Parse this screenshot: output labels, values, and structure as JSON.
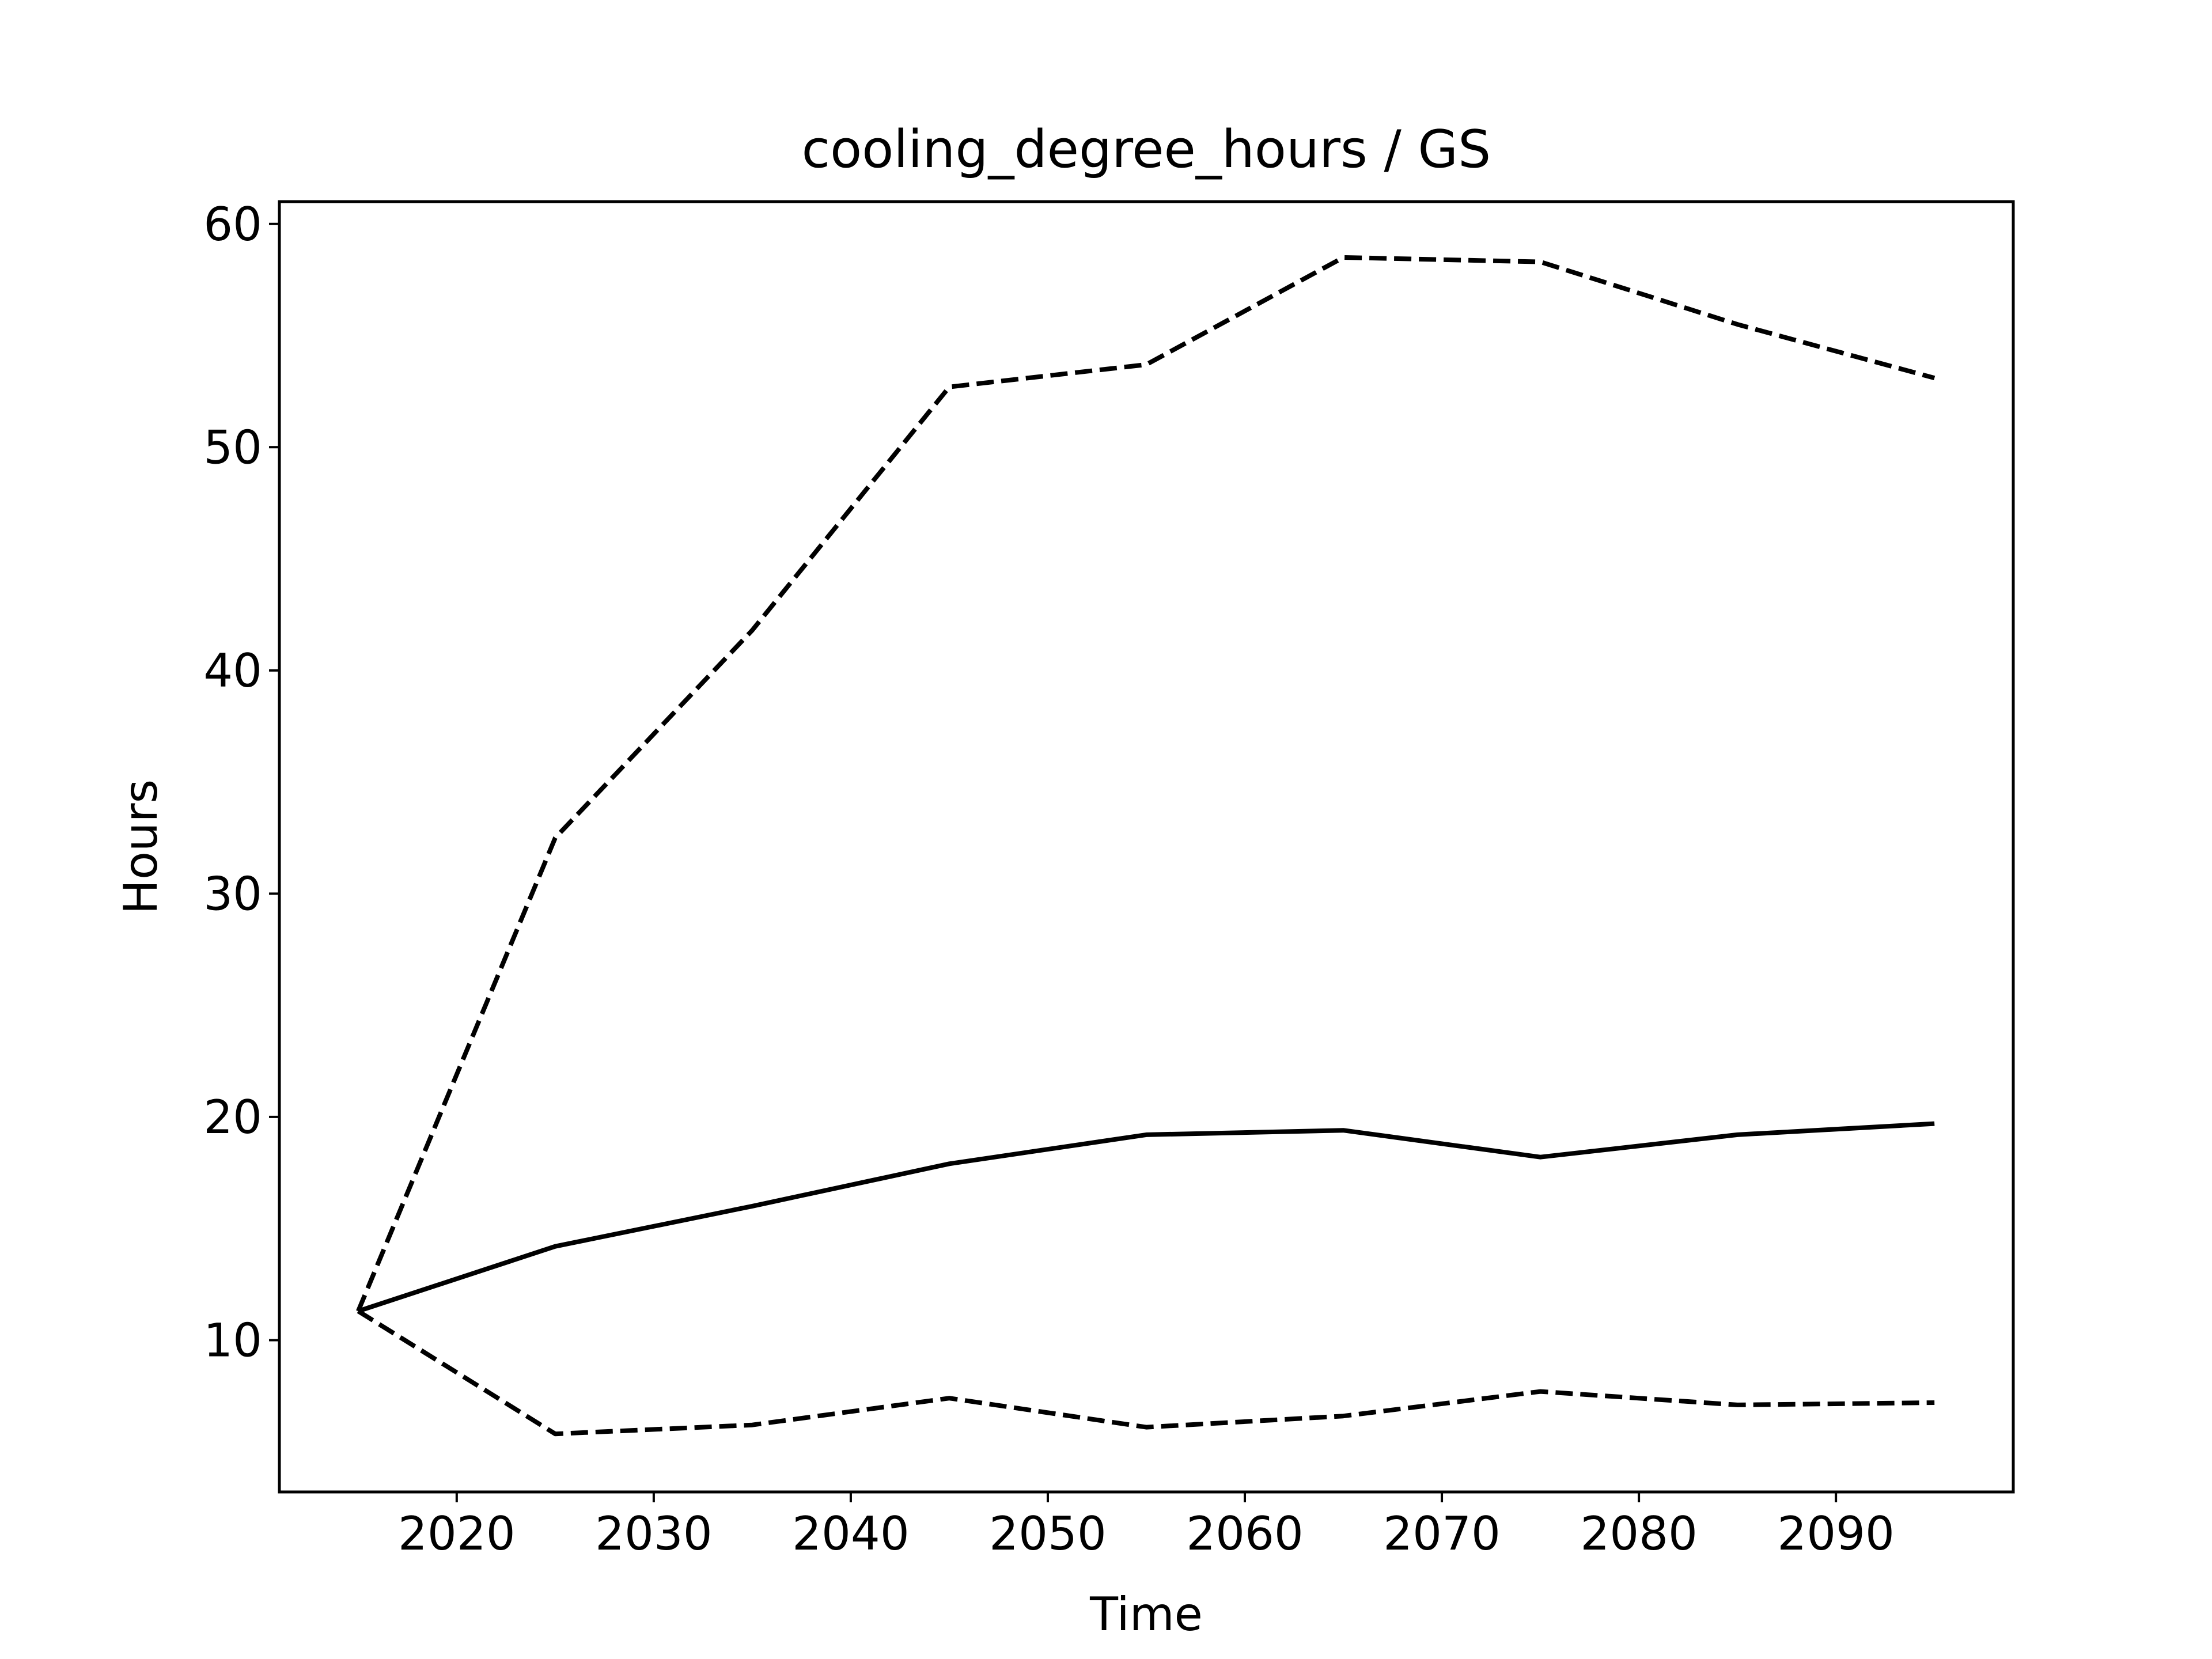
{
  "chart_data": {
    "type": "line",
    "title": "cooling_degree_hours / GS",
    "xlabel": "Time",
    "ylabel": "Hours",
    "xlim": [
      2011,
      2099
    ],
    "ylim": [
      3.2,
      61.0
    ],
    "xticks": [
      2020,
      2030,
      2040,
      2050,
      2060,
      2070,
      2080,
      2090
    ],
    "yticks": [
      10,
      20,
      30,
      40,
      50,
      60
    ],
    "grid": false,
    "legend": "none",
    "x": [
      2015,
      2025,
      2035,
      2045,
      2055,
      2065,
      2075,
      2085,
      2095
    ],
    "series": [
      {
        "style": "solid",
        "color": "#000000",
        "values": [
          11.3,
          14.2,
          16.0,
          17.9,
          19.2,
          19.4,
          18.2,
          19.2,
          19.7
        ]
      },
      {
        "style": "dashed",
        "color": "#000000",
        "values": [
          11.3,
          32.5,
          41.8,
          52.7,
          53.7,
          58.5,
          58.3,
          55.5,
          53.1
        ]
      },
      {
        "style": "dashed",
        "color": "#000000",
        "values": [
          11.3,
          5.8,
          6.2,
          7.4,
          6.1,
          6.6,
          7.7,
          7.1,
          7.2
        ]
      }
    ]
  }
}
